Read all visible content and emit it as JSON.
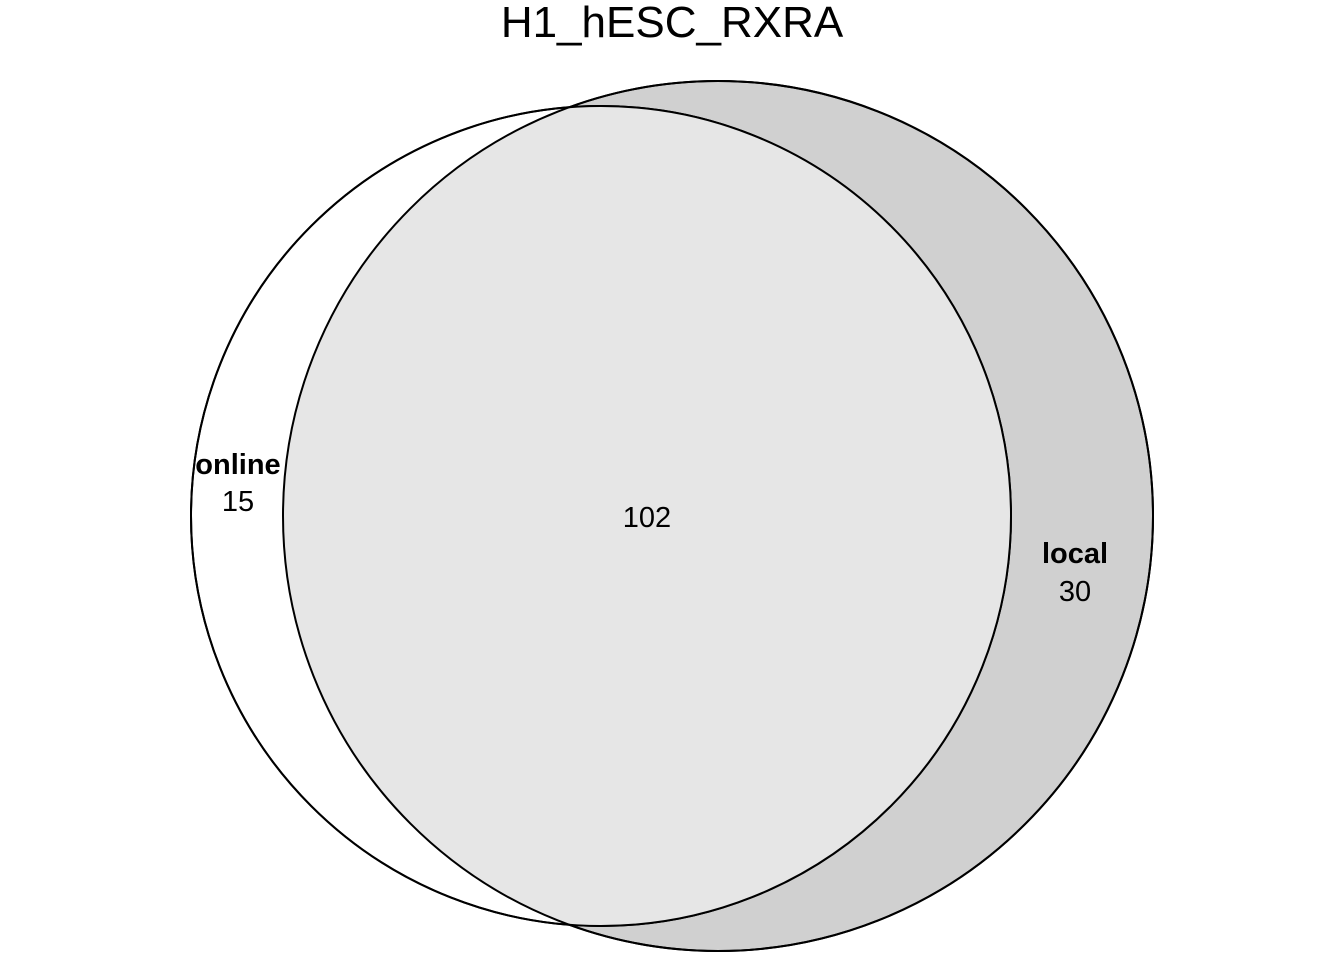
{
  "title": "H1_hESC_RXRA",
  "sets": [
    {
      "name": "online",
      "only_count": "15",
      "fill": "#ffffff"
    },
    {
      "name": "local",
      "only_count": "30",
      "fill": "#d0d0d0"
    }
  ],
  "intersection": {
    "count": "102",
    "fill": "#e6e6e6"
  },
  "outline_color": "#000000"
}
